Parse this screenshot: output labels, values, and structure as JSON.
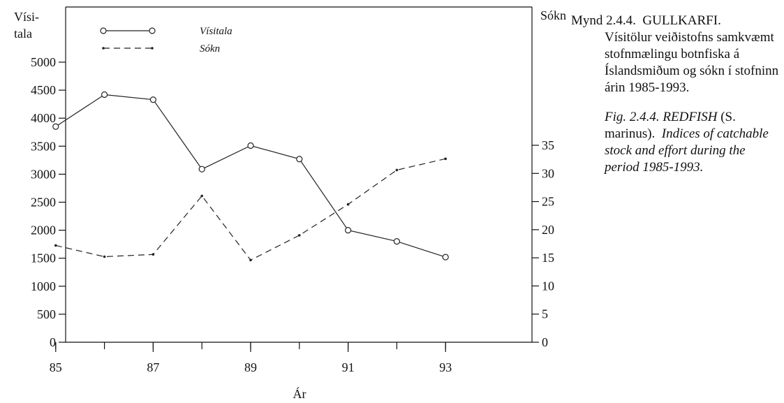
{
  "chart_data": {
    "type": "line",
    "x": [
      85,
      86,
      87,
      88,
      89,
      90,
      91,
      92,
      93
    ],
    "x_ticks": [
      "85",
      "87",
      "89",
      "91",
      "93"
    ],
    "xlabel": "Ár",
    "xlim": [
      84,
      94
    ],
    "y_left": {
      "label_line1": "Vísi-",
      "label_line2": "tala",
      "ylim": [
        0,
        5500
      ],
      "ticks": [
        "0",
        "500",
        "1000",
        "1500",
        "2000",
        "2500",
        "3000",
        "3500",
        "4000",
        "4500",
        "5000"
      ]
    },
    "y_right": {
      "label": "Sókn",
      "ylim": [
        0,
        55
      ],
      "ticks": [
        "0",
        "5",
        "10",
        "15",
        "20",
        "25",
        "30",
        "35"
      ]
    },
    "series": [
      {
        "name": "Vísitala",
        "axis": "left",
        "style": "solid-circle",
        "values": [
          3850,
          4420,
          4330,
          3090,
          3510,
          3270,
          2000,
          1800,
          1520
        ]
      },
      {
        "name": "Sókn",
        "axis": "right",
        "style": "dashed-dot",
        "values": [
          17.2,
          15.2,
          15.6,
          26.0,
          14.6,
          19.0,
          24.5,
          30.6,
          32.6
        ]
      }
    ],
    "grid": false,
    "legend": "top-left"
  },
  "caption": {
    "is_lead": "Mynd 2.4.4.",
    "is_species": "GULLKARFI.",
    "is_body": "Vísitölur veiðistofns samkvæmt stofnmælingu botnfiska á Íslandsmiðum og sókn í stofninn árin 1985-1993.",
    "en_lead": "Fig. 2.4.4. REDFISH",
    "en_paren_open": "(S.",
    "en_sci": "marinus",
    "en_paren_close": ").",
    "en_body": "Indices of catchable stock and effort during the period 1985-1993."
  }
}
